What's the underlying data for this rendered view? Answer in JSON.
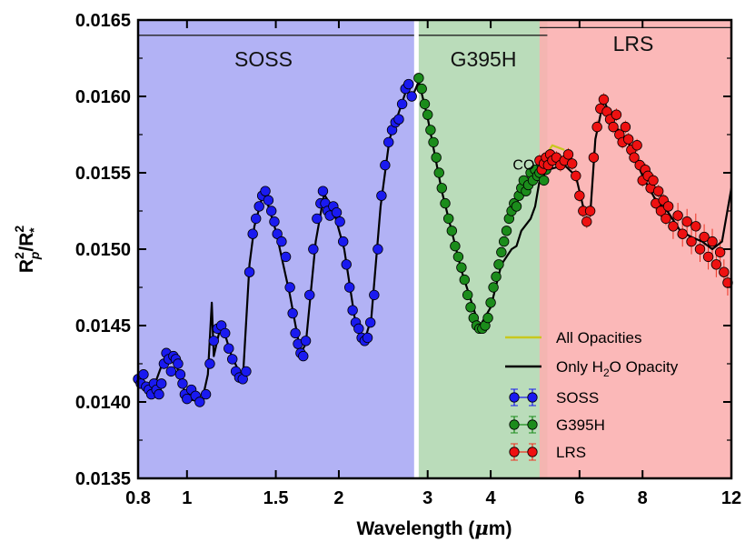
{
  "chart_data": {
    "type": "scatter",
    "title": "",
    "xlabel": "Wavelength (μm)",
    "ylabel": "R_p^2/R_*^2",
    "x_scale": "log",
    "xlim": [
      0.8,
      12
    ],
    "ylim": [
      0.0135,
      0.0165
    ],
    "x_ticks": [
      {
        "value": 0.8,
        "label": "0.8"
      },
      {
        "value": 1,
        "label": "1"
      },
      {
        "value": 1.5,
        "label": "1.5"
      },
      {
        "value": 2,
        "label": "2"
      },
      {
        "value": 3,
        "label": "3"
      },
      {
        "value": 4,
        "label": "4"
      },
      {
        "value": 6,
        "label": "6"
      },
      {
        "value": 8,
        "label": "8"
      },
      {
        "value": 12,
        "label": "12"
      }
    ],
    "y_ticks": [
      {
        "value": 0.0135,
        "label": "0.0135"
      },
      {
        "value": 0.014,
        "label": "0.0140"
      },
      {
        "value": 0.0145,
        "label": "0.0145"
      },
      {
        "value": 0.015,
        "label": "0.0150"
      },
      {
        "value": 0.0155,
        "label": "0.0155"
      },
      {
        "value": 0.016,
        "label": "0.0160"
      },
      {
        "value": 0.0165,
        "label": "0.0165"
      }
    ],
    "regions": [
      {
        "name": "SOSS",
        "x": [
          0.8,
          2.82
        ],
        "color": "#aaaaf4",
        "bar_y": 0.0164
      },
      {
        "name": "G395H",
        "x": [
          2.88,
          5.18
        ],
        "color": "#b2d8b2",
        "bar_y": 0.0164
      },
      {
        "name": "LRS",
        "x": [
          5.0,
          12
        ],
        "color": "#fbb0b0",
        "bar_y": 0.01645
      }
    ],
    "annotations": [
      {
        "text": "CO",
        "x": 4.65,
        "y": 0.01555
      }
    ],
    "legend_entries": {
      "all_opacities": "All Opacities",
      "h2o_prefix": "Only H",
      "h2o_sub": "2",
      "h2o_suffix": "O Opacity",
      "soss": "SOSS",
      "g395h": "G395H",
      "lrs": "LRS"
    },
    "legend_position": "bottom-right",
    "series": [
      {
        "name": "SOSS",
        "color": "#1a1af0",
        "ecolor": "#1a1af0",
        "points": [
          [
            0.8,
            0.01415
          ],
          [
            0.81,
            0.01412
          ],
          [
            0.82,
            0.01418
          ],
          [
            0.83,
            0.0141
          ],
          [
            0.84,
            0.01408
          ],
          [
            0.85,
            0.01405
          ],
          [
            0.86,
            0.01412
          ],
          [
            0.87,
            0.01408
          ],
          [
            0.88,
            0.01405
          ],
          [
            0.89,
            0.01412
          ],
          [
            0.9,
            0.01425
          ],
          [
            0.91,
            0.01432
          ],
          [
            0.92,
            0.01428
          ],
          [
            0.93,
            0.0142
          ],
          [
            0.94,
            0.0143
          ],
          [
            0.95,
            0.01428
          ],
          [
            0.96,
            0.01425
          ],
          [
            0.97,
            0.01418
          ],
          [
            0.98,
            0.01412
          ],
          [
            0.99,
            0.01405
          ],
          [
            1.0,
            0.01402
          ],
          [
            1.02,
            0.01408
          ],
          [
            1.04,
            0.01404
          ],
          [
            1.06,
            0.014
          ],
          [
            1.09,
            0.01405
          ],
          [
            1.11,
            0.01425
          ],
          [
            1.13,
            0.0144
          ],
          [
            1.15,
            0.01448
          ],
          [
            1.17,
            0.0145
          ],
          [
            1.19,
            0.01445
          ],
          [
            1.21,
            0.01435
          ],
          [
            1.23,
            0.01428
          ],
          [
            1.25,
            0.0142
          ],
          [
            1.27,
            0.01416
          ],
          [
            1.29,
            0.01415
          ],
          [
            1.31,
            0.0142
          ],
          [
            1.33,
            0.01485
          ],
          [
            1.35,
            0.0151
          ],
          [
            1.37,
            0.0152
          ],
          [
            1.39,
            0.01528
          ],
          [
            1.41,
            0.01535
          ],
          [
            1.43,
            0.01538
          ],
          [
            1.45,
            0.01532
          ],
          [
            1.47,
            0.01525
          ],
          [
            1.49,
            0.01518
          ],
          [
            1.51,
            0.0151
          ],
          [
            1.54,
            0.01505
          ],
          [
            1.57,
            0.01495
          ],
          [
            1.6,
            0.01475
          ],
          [
            1.62,
            0.01458
          ],
          [
            1.64,
            0.01445
          ],
          [
            1.66,
            0.01438
          ],
          [
            1.68,
            0.01432
          ],
          [
            1.7,
            0.0143
          ],
          [
            1.72,
            0.0144
          ],
          [
            1.75,
            0.0147
          ],
          [
            1.78,
            0.015
          ],
          [
            1.81,
            0.0152
          ],
          [
            1.84,
            0.0153
          ],
          [
            1.86,
            0.01538
          ],
          [
            1.88,
            0.0153
          ],
          [
            1.9,
            0.01525
          ],
          [
            1.92,
            0.01522
          ],
          [
            1.95,
            0.01528
          ],
          [
            1.98,
            0.01524
          ],
          [
            2.01,
            0.01518
          ],
          [
            2.04,
            0.01505
          ],
          [
            2.07,
            0.0149
          ],
          [
            2.1,
            0.01475
          ],
          [
            2.13,
            0.0146
          ],
          [
            2.16,
            0.01452
          ],
          [
            2.19,
            0.01448
          ],
          [
            2.22,
            0.01442
          ],
          [
            2.25,
            0.0144
          ],
          [
            2.28,
            0.01442
          ],
          [
            2.31,
            0.01452
          ],
          [
            2.35,
            0.0147
          ],
          [
            2.39,
            0.015
          ],
          [
            2.43,
            0.01535
          ],
          [
            2.47,
            0.01555
          ],
          [
            2.51,
            0.0157
          ],
          [
            2.55,
            0.01578
          ],
          [
            2.59,
            0.01583
          ],
          [
            2.63,
            0.01585
          ],
          [
            2.67,
            0.01595
          ],
          [
            2.71,
            0.01605
          ],
          [
            2.75,
            0.01608
          ],
          [
            2.79,
            0.016
          ]
        ]
      },
      {
        "name": "G395H",
        "color": "#1b8c1b",
        "ecolor": "#1b8c1b",
        "points": [
          [
            2.88,
            0.01612
          ],
          [
            2.92,
            0.01605
          ],
          [
            2.96,
            0.01595
          ],
          [
            3.0,
            0.01588
          ],
          [
            3.04,
            0.01578
          ],
          [
            3.08,
            0.0157
          ],
          [
            3.12,
            0.0156
          ],
          [
            3.16,
            0.0155
          ],
          [
            3.2,
            0.0154
          ],
          [
            3.25,
            0.0153
          ],
          [
            3.3,
            0.0152
          ],
          [
            3.35,
            0.01512
          ],
          [
            3.4,
            0.01502
          ],
          [
            3.45,
            0.01495
          ],
          [
            3.5,
            0.01488
          ],
          [
            3.55,
            0.0148
          ],
          [
            3.6,
            0.0147
          ],
          [
            3.65,
            0.01462
          ],
          [
            3.7,
            0.01455
          ],
          [
            3.75,
            0.0145
          ],
          [
            3.8,
            0.01448
          ],
          [
            3.85,
            0.01448
          ],
          [
            3.9,
            0.0145
          ],
          [
            3.95,
            0.01455
          ],
          [
            4.0,
            0.01465
          ],
          [
            4.05,
            0.01475
          ],
          [
            4.1,
            0.01482
          ],
          [
            4.15,
            0.0149
          ],
          [
            4.2,
            0.01498
          ],
          [
            4.25,
            0.01505
          ],
          [
            4.3,
            0.01512
          ],
          [
            4.35,
            0.0152
          ],
          [
            4.4,
            0.01525
          ],
          [
            4.45,
            0.0153
          ],
          [
            4.5,
            0.01528
          ],
          [
            4.55,
            0.01535
          ],
          [
            4.6,
            0.0154
          ],
          [
            4.65,
            0.01545
          ],
          [
            4.7,
            0.01538
          ],
          [
            4.75,
            0.01542
          ],
          [
            4.8,
            0.0155
          ],
          [
            4.85,
            0.01545
          ],
          [
            4.9,
            0.01552
          ],
          [
            4.95,
            0.01548
          ],
          [
            5.0,
            0.0155
          ],
          [
            5.05,
            0.01555
          ],
          [
            5.1,
            0.01545
          ],
          [
            5.15,
            0.01552
          ]
        ]
      },
      {
        "name": "LRS",
        "color": "#ee1111",
        "ecolor": "#ee3322",
        "points": [
          [
            5.0,
            0.01558
          ],
          [
            5.05,
            0.01552
          ],
          [
            5.1,
            0.01556
          ],
          [
            5.15,
            0.0156
          ],
          [
            5.2,
            0.01555
          ],
          [
            5.25,
            0.01562
          ],
          [
            5.3,
            0.01558
          ],
          [
            5.4,
            0.0156
          ],
          [
            5.5,
            0.01555
          ],
          [
            5.6,
            0.01558
          ],
          [
            5.7,
            0.01562
          ],
          [
            5.8,
            0.01556
          ],
          [
            5.9,
            0.01548
          ],
          [
            6.0,
            0.01535
          ],
          [
            6.1,
            0.01525
          ],
          [
            6.2,
            0.01518
          ],
          [
            6.3,
            0.01525
          ],
          [
            6.4,
            0.0156
          ],
          [
            6.5,
            0.0158
          ],
          [
            6.6,
            0.01592
          ],
          [
            6.7,
            0.01598
          ],
          [
            6.8,
            0.0159
          ],
          [
            6.9,
            0.01585
          ],
          [
            7.0,
            0.0158
          ],
          [
            7.1,
            0.01588
          ],
          [
            7.2,
            0.01575
          ],
          [
            7.3,
            0.0157
          ],
          [
            7.4,
            0.0158
          ],
          [
            7.5,
            0.01572
          ],
          [
            7.6,
            0.01565
          ],
          [
            7.7,
            0.0156
          ],
          [
            7.8,
            0.01568
          ],
          [
            7.9,
            0.01555
          ],
          [
            8.0,
            0.01545
          ],
          [
            8.1,
            0.01552
          ],
          [
            8.2,
            0.01548
          ],
          [
            8.3,
            0.0154
          ],
          [
            8.4,
            0.01545
          ],
          [
            8.5,
            0.0153
          ],
          [
            8.6,
            0.01538
          ],
          [
            8.7,
            0.01525
          ],
          [
            8.8,
            0.01532
          ],
          [
            8.9,
            0.0152
          ],
          [
            9.0,
            0.01528
          ],
          [
            9.2,
            0.01515
          ],
          [
            9.4,
            0.01522
          ],
          [
            9.6,
            0.0151
          ],
          [
            9.8,
            0.01518
          ],
          [
            10.0,
            0.01505
          ],
          [
            10.2,
            0.01515
          ],
          [
            10.4,
            0.015
          ],
          [
            10.6,
            0.01508
          ],
          [
            10.8,
            0.01495
          ],
          [
            11.0,
            0.01505
          ],
          [
            11.2,
            0.0149
          ],
          [
            11.4,
            0.01498
          ],
          [
            11.6,
            0.01485
          ],
          [
            11.8,
            0.01478
          ]
        ]
      }
    ],
    "model_lines": [
      {
        "name": "Only H2O Opacity",
        "color": "#000000",
        "points": [
          [
            0.8,
            0.01415
          ],
          [
            0.86,
            0.0141
          ],
          [
            0.9,
            0.01428
          ],
          [
            0.94,
            0.0143
          ],
          [
            1.0,
            0.01402
          ],
          [
            1.07,
            0.014
          ],
          [
            1.1,
            0.01418
          ],
          [
            1.12,
            0.01465
          ],
          [
            1.13,
            0.0143
          ],
          [
            1.17,
            0.01452
          ],
          [
            1.22,
            0.01432
          ],
          [
            1.29,
            0.01414
          ],
          [
            1.33,
            0.0149
          ],
          [
            1.36,
            0.01515
          ],
          [
            1.42,
            0.01538
          ],
          [
            1.5,
            0.01512
          ],
          [
            1.6,
            0.0147
          ],
          [
            1.68,
            0.01432
          ],
          [
            1.72,
            0.01438
          ],
          [
            1.8,
            0.01505
          ],
          [
            1.87,
            0.01536
          ],
          [
            1.95,
            0.01526
          ],
          [
            2.05,
            0.015
          ],
          [
            2.15,
            0.01455
          ],
          [
            2.25,
            0.0144
          ],
          [
            2.32,
            0.01455
          ],
          [
            2.42,
            0.01528
          ],
          [
            2.52,
            0.01572
          ],
          [
            2.62,
            0.01588
          ],
          [
            2.72,
            0.01604
          ],
          [
            2.8,
            0.016
          ],
          [
            2.88,
            0.0161
          ],
          [
            3.0,
            0.01586
          ],
          [
            3.2,
            0.01538
          ],
          [
            3.5,
            0.01486
          ],
          [
            3.8,
            0.01449
          ],
          [
            4.0,
            0.01462
          ],
          [
            4.2,
            0.0149
          ],
          [
            4.4,
            0.015
          ],
          [
            4.5,
            0.01502
          ],
          [
            4.6,
            0.01512
          ],
          [
            4.7,
            0.01516
          ],
          [
            4.8,
            0.0152
          ],
          [
            4.9,
            0.01528
          ],
          [
            5.0,
            0.01545
          ],
          [
            5.2,
            0.01552
          ],
          [
            5.6,
            0.01555
          ],
          [
            5.9,
            0.01548
          ],
          [
            6.1,
            0.01528
          ],
          [
            6.3,
            0.01522
          ],
          [
            6.45,
            0.01572
          ],
          [
            6.7,
            0.01598
          ],
          [
            7.0,
            0.01582
          ],
          [
            7.5,
            0.0157
          ],
          [
            8.0,
            0.01548
          ],
          [
            8.5,
            0.01532
          ],
          [
            9.0,
            0.01524
          ],
          [
            9.5,
            0.01512
          ],
          [
            10.0,
            0.01508
          ],
          [
            10.5,
            0.01505
          ],
          [
            11.0,
            0.015
          ],
          [
            11.5,
            0.01505
          ],
          [
            12.0,
            0.0154
          ]
        ]
      },
      {
        "name": "All Opacities",
        "color": "#c8c81e",
        "points": [
          [
            4.4,
            0.0153
          ],
          [
            4.6,
            0.01538
          ],
          [
            4.8,
            0.01548
          ],
          [
            5.0,
            0.01555
          ],
          [
            5.3,
            0.01568
          ],
          [
            5.6,
            0.01565
          ]
        ]
      }
    ]
  }
}
